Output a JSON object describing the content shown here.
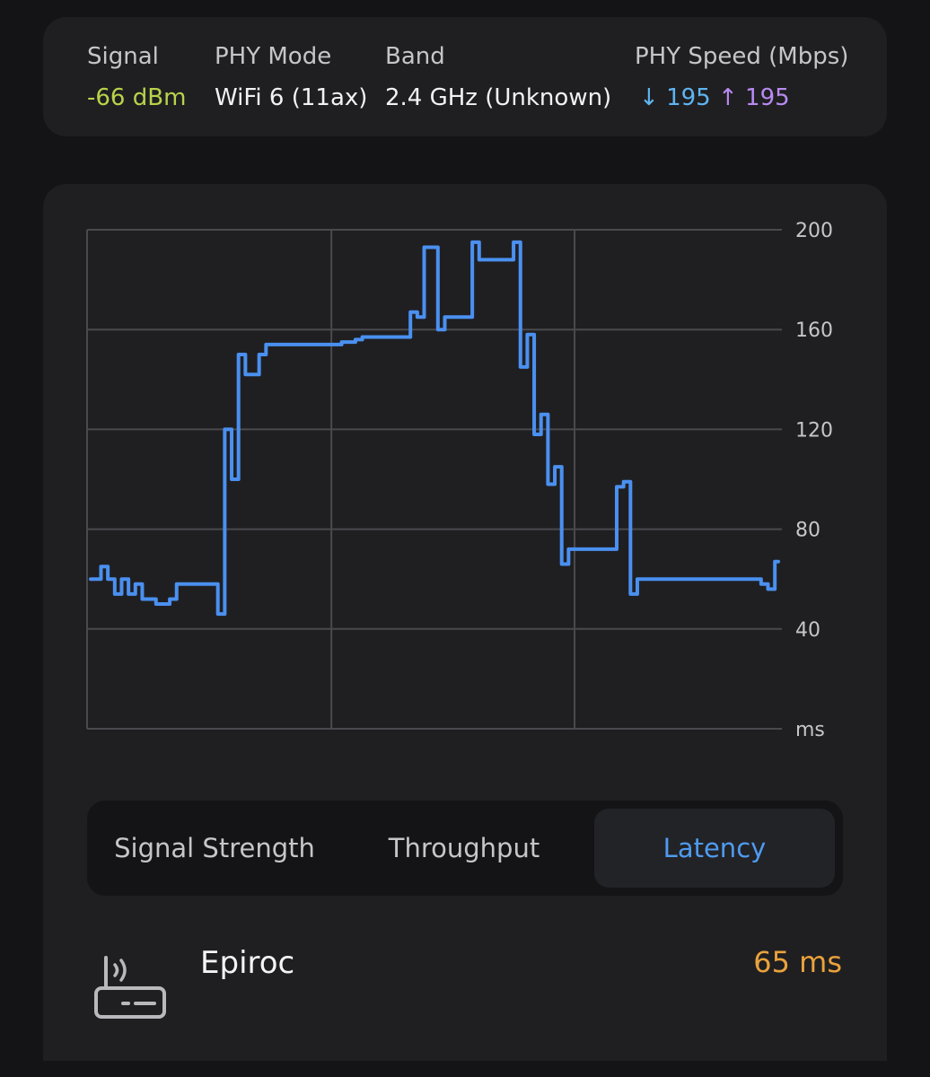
{
  "info": {
    "signal": {
      "label": "Signal",
      "value": "-66 dBm",
      "color": "#b9d34a"
    },
    "phy_mode": {
      "label": "PHY Mode",
      "value": "WiFi 6 (11ax)"
    },
    "band": {
      "label": "Band",
      "value": "2.4 GHz (Unknown)"
    },
    "phy_speed": {
      "label": "PHY Speed (Mbps)",
      "down_arrow": "↓",
      "down": "195",
      "up_arrow": "↑",
      "up": "195",
      "down_color": "#5fb4f0",
      "up_color": "#b78af0"
    }
  },
  "chart_data": {
    "type": "line",
    "title": "",
    "xlabel": "",
    "ylabel": "ms",
    "ylim": [
      0,
      200
    ],
    "y_ticks": [
      "200",
      "160",
      "120",
      "80",
      "40"
    ],
    "y_unit_label": "ms",
    "grid": true,
    "line_color": "#4a90f0",
    "x": [
      0,
      1,
      2,
      3,
      4,
      5,
      6,
      7,
      8,
      9,
      10,
      11,
      12,
      13,
      14,
      15,
      16,
      17,
      18,
      19,
      20,
      21,
      22,
      23,
      24,
      25,
      26,
      27,
      28,
      29,
      30,
      31,
      32,
      33,
      34,
      35,
      36,
      37,
      38,
      39,
      40,
      41,
      42,
      43,
      44,
      45,
      46,
      47,
      48,
      49,
      50,
      51,
      52,
      53,
      54,
      55,
      56,
      57,
      58,
      59,
      60,
      61,
      62,
      63,
      64,
      65,
      66,
      67,
      68,
      69,
      70,
      71,
      72,
      73,
      74,
      75,
      76,
      77,
      78,
      79,
      80,
      81,
      82,
      83,
      84,
      85,
      86,
      87,
      88,
      89,
      90,
      91,
      92,
      93,
      94,
      95,
      96,
      97,
      98,
      99,
      100
    ],
    "series": [
      {
        "values": [
          60,
          60,
          65,
          60,
          54,
          60,
          54,
          58,
          52,
          52,
          50,
          50,
          52,
          58,
          58,
          58,
          58,
          58,
          58,
          46,
          120,
          100,
          150,
          142,
          142,
          150,
          154,
          154,
          154,
          154,
          154,
          154,
          154,
          154,
          154,
          154,
          154,
          155,
          155,
          156,
          157,
          157,
          157,
          157,
          157,
          157,
          157,
          167,
          165,
          193,
          193,
          160,
          165,
          165,
          165,
          165,
          195,
          188,
          188,
          188,
          188,
          188,
          195,
          145,
          158,
          118,
          126,
          98,
          105,
          66,
          72,
          72,
          72,
          72,
          72,
          72,
          72,
          97,
          99,
          54,
          60,
          60,
          60,
          60,
          60,
          60,
          60,
          60,
          60,
          60,
          60,
          60,
          60,
          60,
          60,
          60,
          60,
          60,
          58,
          56,
          67
        ]
      }
    ]
  },
  "tabs": {
    "signal_strength": "Signal Strength",
    "throughput": "Throughput",
    "latency": "Latency",
    "active_color": "#4f9bf0"
  },
  "device": {
    "icon": "router-icon",
    "name": "Epiroc",
    "latency": "65 ms",
    "latency_color": "#eba23b"
  }
}
